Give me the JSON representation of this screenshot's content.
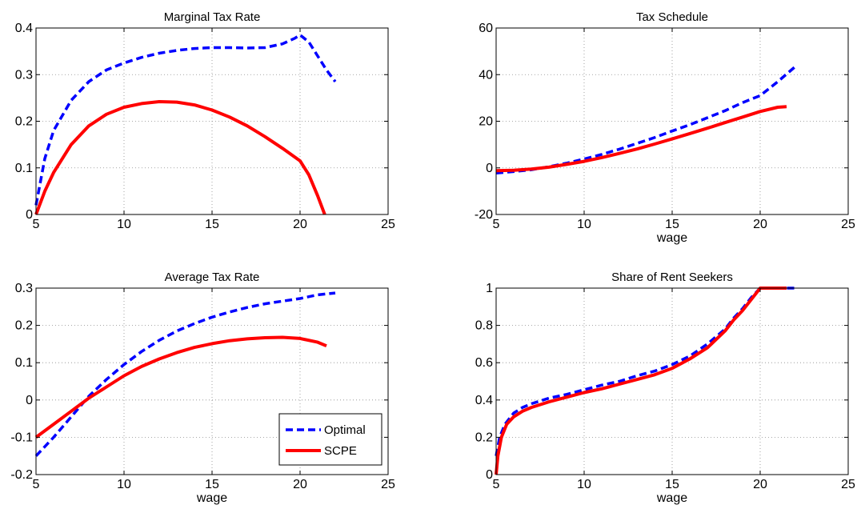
{
  "colors": {
    "optimal": "#0000ff",
    "scpe": "#ff0000"
  },
  "legend": {
    "position": "bottom-right",
    "panel": 2,
    "entries": [
      "Optimal",
      "SCPE"
    ]
  },
  "chart_data": [
    {
      "type": "line",
      "title": "Marginal Tax Rate",
      "xlabel": "",
      "ylabel": "",
      "xlim": [
        5,
        25
      ],
      "ylim": [
        0,
        0.4
      ],
      "xticks": [
        5,
        10,
        15,
        20,
        25
      ],
      "yticks": [
        0,
        0.1,
        0.2,
        0.3,
        0.4
      ],
      "xtick_labels": [
        "5",
        "10",
        "15",
        "20",
        "25"
      ],
      "ytick_labels": [
        "0",
        "0.1",
        "0.2",
        "0.3",
        "0.4"
      ],
      "grid": true,
      "series": [
        {
          "name": "Optimal",
          "style": "dashed",
          "color": "#0000ff",
          "x": [
            5,
            5.5,
            6,
            7,
            8,
            9,
            10,
            11,
            12,
            13,
            14,
            15,
            16,
            17,
            18,
            19,
            19.7,
            20,
            20.5,
            21,
            21.5,
            22
          ],
          "y": [
            0.02,
            0.12,
            0.18,
            0.245,
            0.285,
            0.31,
            0.325,
            0.337,
            0.346,
            0.352,
            0.356,
            0.358,
            0.358,
            0.357,
            0.358,
            0.366,
            0.378,
            0.385,
            0.37,
            0.34,
            0.31,
            0.285
          ]
        },
        {
          "name": "SCPE",
          "style": "solid",
          "color": "#ff0000",
          "x": [
            5,
            5.5,
            6,
            7,
            8,
            9,
            10,
            11,
            12,
            13,
            14,
            15,
            16,
            17,
            18,
            19,
            20,
            20.5,
            21,
            21.4
          ],
          "y": [
            0,
            0.05,
            0.09,
            0.15,
            0.19,
            0.215,
            0.23,
            0.238,
            0.242,
            0.241,
            0.235,
            0.224,
            0.209,
            0.19,
            0.167,
            0.142,
            0.115,
            0.085,
            0.04,
            0
          ]
        }
      ]
    },
    {
      "type": "line",
      "title": "Tax Schedule",
      "xlabel": "wage",
      "ylabel": "",
      "xlim": [
        5,
        25
      ],
      "ylim": [
        -20,
        60
      ],
      "xticks": [
        5,
        10,
        15,
        20,
        25
      ],
      "yticks": [
        -20,
        0,
        20,
        40,
        60
      ],
      "xtick_labels": [
        "5",
        "10",
        "15",
        "20",
        "25"
      ],
      "ytick_labels": [
        "-20",
        "0",
        "20",
        "40",
        "60"
      ],
      "grid": true,
      "series": [
        {
          "name": "Optimal",
          "style": "dashed",
          "color": "#0000ff",
          "x": [
            5,
            6,
            7,
            8,
            9,
            10,
            11,
            12,
            13,
            14,
            15,
            16,
            17,
            18,
            19,
            20,
            21,
            22
          ],
          "y": [
            -2.2,
            -1.6,
            -0.8,
            0.5,
            2,
            3.8,
            5.8,
            8,
            10.5,
            13,
            15.8,
            18.5,
            21.5,
            24.5,
            28,
            31,
            37,
            43.5
          ]
        },
        {
          "name": "SCPE",
          "style": "solid",
          "color": "#ff0000",
          "x": [
            5,
            6,
            7,
            8,
            9,
            10,
            11,
            12,
            13,
            14,
            15,
            16,
            17,
            18,
            19,
            20,
            21,
            21.5
          ],
          "y": [
            -1.2,
            -1,
            -0.5,
            0.3,
            1.5,
            2.8,
            4.4,
            6.2,
            8.1,
            10.2,
            12.4,
            14.7,
            17,
            19.4,
            21.8,
            24.2,
            26,
            26.3
          ]
        }
      ]
    },
    {
      "type": "line",
      "title": "Average Tax Rate",
      "xlabel": "wage",
      "ylabel": "",
      "xlim": [
        5,
        25
      ],
      "ylim": [
        -0.2,
        0.3
      ],
      "xticks": [
        5,
        10,
        15,
        20,
        25
      ],
      "yticks": [
        -0.2,
        -0.1,
        0,
        0.1,
        0.2,
        0.3
      ],
      "xtick_labels": [
        "5",
        "10",
        "15",
        "20",
        "25"
      ],
      "ytick_labels": [
        "-0.2",
        "-0.1",
        "0",
        "0.1",
        "0.2",
        "0.3"
      ],
      "grid": true,
      "series": [
        {
          "name": "Optimal",
          "style": "dashed",
          "color": "#0000ff",
          "x": [
            5,
            6,
            7,
            8,
            9,
            10,
            11,
            12,
            13,
            14,
            15,
            16,
            17,
            18,
            19,
            20,
            21,
            22
          ],
          "y": [
            -0.15,
            -0.1,
            -0.045,
            0.01,
            0.055,
            0.095,
            0.13,
            0.16,
            0.185,
            0.205,
            0.222,
            0.236,
            0.248,
            0.258,
            0.265,
            0.272,
            0.282,
            0.287
          ]
        },
        {
          "name": "SCPE",
          "style": "solid",
          "color": "#ff0000",
          "x": [
            5,
            6,
            7,
            8,
            9,
            10,
            11,
            12,
            13,
            14,
            15,
            16,
            17,
            18,
            19,
            20,
            21,
            21.5
          ],
          "y": [
            -0.1,
            -0.065,
            -0.03,
            0.005,
            0.035,
            0.065,
            0.09,
            0.11,
            0.127,
            0.141,
            0.151,
            0.159,
            0.164,
            0.167,
            0.168,
            0.165,
            0.155,
            0.145
          ]
        }
      ]
    },
    {
      "type": "line",
      "title": "Share of Rent Seekers",
      "xlabel": "wage",
      "ylabel": "",
      "xlim": [
        5,
        25
      ],
      "ylim": [
        0,
        1
      ],
      "xticks": [
        5,
        10,
        15,
        20,
        25
      ],
      "yticks": [
        0,
        0.2,
        0.4,
        0.6,
        0.8,
        1
      ],
      "xtick_labels": [
        "5",
        "10",
        "15",
        "20",
        "25"
      ],
      "ytick_labels": [
        "0",
        "0.2",
        "0.4",
        "0.6",
        "0.8",
        "1"
      ],
      "grid": true,
      "series": [
        {
          "name": "Optimal",
          "style": "dashed",
          "color": "#0000ff",
          "x": [
            5,
            5.2,
            5.5,
            6,
            6.5,
            7,
            8,
            9,
            10,
            11,
            12,
            13,
            14,
            15,
            16,
            17,
            18,
            18.5,
            19,
            19.5,
            20,
            21,
            22
          ],
          "y": [
            0.1,
            0.2,
            0.27,
            0.33,
            0.36,
            0.38,
            0.41,
            0.43,
            0.455,
            0.48,
            0.5,
            0.53,
            0.555,
            0.59,
            0.635,
            0.7,
            0.78,
            0.84,
            0.89,
            0.95,
            1,
            1,
            1
          ]
        },
        {
          "name": "SCPE",
          "style": "solid",
          "color": "#ff0000",
          "x": [
            5,
            5.1,
            5.3,
            5.6,
            6,
            6.5,
            7,
            8,
            9,
            10,
            11,
            12,
            13,
            14,
            15,
            16,
            17,
            18,
            18.5,
            19,
            19.5,
            20,
            21,
            21.5
          ],
          "y": [
            0,
            0.1,
            0.2,
            0.27,
            0.31,
            0.34,
            0.36,
            0.39,
            0.415,
            0.44,
            0.46,
            0.485,
            0.51,
            0.535,
            0.57,
            0.62,
            0.68,
            0.77,
            0.83,
            0.88,
            0.94,
            1,
            1,
            1
          ]
        }
      ]
    }
  ]
}
